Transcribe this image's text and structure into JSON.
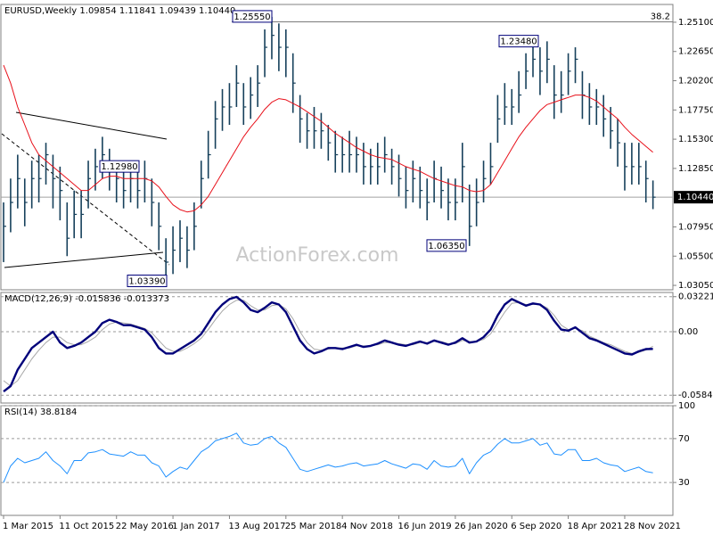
{
  "chart_data": [
    {
      "type": "ohlc",
      "title": "EURUSD,Weekly  1.09854 1.11841 1.09439 1.10440",
      "watermark": "ActionForex.com",
      "categories": [
        "1 Mar 2015",
        null,
        null,
        null,
        null,
        null,
        null,
        null,
        "11 Oct 2015",
        null,
        null,
        null,
        null,
        null,
        null,
        null,
        "22 May 2016",
        null,
        null,
        null,
        null,
        null,
        null,
        null,
        "1 Jan 2017",
        null,
        null,
        null,
        null,
        null,
        null,
        null,
        "13 Aug 2017",
        null,
        null,
        null,
        null,
        null,
        null,
        null,
        "25 Mar 2018",
        null,
        null,
        null,
        null,
        null,
        null,
        null,
        "4 Nov 2018",
        null,
        null,
        null,
        null,
        null,
        null,
        null,
        "16 Jun 2019",
        null,
        null,
        null,
        null,
        null,
        null,
        null,
        "26 Jan 2020",
        null,
        null,
        null,
        null,
        null,
        null,
        null,
        "6 Sep 2020",
        null,
        null,
        null,
        null,
        null,
        null,
        null,
        "18 Apr 2021",
        null,
        null,
        null,
        null,
        null,
        null,
        null,
        "28 Nov 2021",
        null,
        null,
        null,
        null
      ],
      "color": "#16405b",
      "high": [
        1.1,
        1.12,
        1.14,
        1.12,
        1.135,
        1.14,
        1.15,
        1.14,
        1.13,
        1.1,
        1.11,
        1.11,
        1.135,
        1.145,
        1.155,
        1.145,
        1.135,
        1.13,
        1.135,
        1.13,
        1.135,
        1.12,
        1.1,
        1.07,
        1.08,
        1.085,
        1.08,
        1.1,
        1.135,
        1.16,
        1.185,
        1.195,
        1.2,
        1.215,
        1.2,
        1.205,
        1.215,
        1.245,
        1.2555,
        1.25,
        1.245,
        1.225,
        1.19,
        1.175,
        1.18,
        1.175,
        1.165,
        1.16,
        1.155,
        1.16,
        1.155,
        1.15,
        1.145,
        1.15,
        1.155,
        1.145,
        1.14,
        1.13,
        1.135,
        1.13,
        1.12,
        1.135,
        1.13,
        1.12,
        1.12,
        1.15,
        1.115,
        1.12,
        1.135,
        1.15,
        1.19,
        1.2,
        1.195,
        1.21,
        1.225,
        1.2348,
        1.23,
        1.235,
        1.215,
        1.21,
        1.225,
        1.23,
        1.21,
        1.2,
        1.195,
        1.19,
        1.18,
        1.17,
        1.15,
        1.15,
        1.15,
        1.135,
        1.1184
      ],
      "low": [
        1.05,
        1.075,
        1.095,
        1.08,
        1.095,
        1.1,
        1.115,
        1.095,
        1.085,
        1.055,
        1.07,
        1.07,
        1.095,
        1.11,
        1.12,
        1.11,
        1.1,
        1.095,
        1.1,
        1.095,
        1.1,
        1.08,
        1.06,
        1.0339,
        1.04,
        1.05,
        1.045,
        1.06,
        1.095,
        1.12,
        1.145,
        1.16,
        1.165,
        1.18,
        1.165,
        1.17,
        1.18,
        1.205,
        1.22,
        1.21,
        1.205,
        1.175,
        1.15,
        1.145,
        1.145,
        1.145,
        1.135,
        1.125,
        1.125,
        1.125,
        1.125,
        1.115,
        1.115,
        1.115,
        1.125,
        1.115,
        1.105,
        1.095,
        1.1,
        1.095,
        1.085,
        1.1,
        1.095,
        1.085,
        1.085,
        1.1,
        1.0635,
        1.08,
        1.1,
        1.115,
        1.15,
        1.165,
        1.165,
        1.175,
        1.195,
        1.205,
        1.19,
        1.2,
        1.17,
        1.175,
        1.19,
        1.2,
        1.17,
        1.165,
        1.165,
        1.155,
        1.145,
        1.13,
        1.11,
        1.115,
        1.115,
        1.1,
        1.0944
      ],
      "close": [
        1.08,
        1.1,
        1.12,
        1.1,
        1.12,
        1.12,
        1.14,
        1.12,
        1.11,
        1.07,
        1.09,
        1.09,
        1.12,
        1.13,
        1.14,
        1.13,
        1.12,
        1.11,
        1.12,
        1.11,
        1.12,
        1.1,
        1.08,
        1.05,
        1.06,
        1.07,
        1.06,
        1.08,
        1.12,
        1.14,
        1.17,
        1.18,
        1.18,
        1.2,
        1.18,
        1.19,
        1.2,
        1.23,
        1.24,
        1.23,
        1.23,
        1.2,
        1.17,
        1.16,
        1.16,
        1.16,
        1.15,
        1.14,
        1.14,
        1.14,
        1.14,
        1.13,
        1.13,
        1.13,
        1.14,
        1.13,
        1.12,
        1.11,
        1.12,
        1.11,
        1.1,
        1.12,
        1.11,
        1.1,
        1.1,
        1.13,
        1.08,
        1.1,
        1.12,
        1.13,
        1.17,
        1.18,
        1.18,
        1.19,
        1.21,
        1.22,
        1.21,
        1.22,
        1.19,
        1.19,
        1.21,
        1.22,
        1.19,
        1.18,
        1.18,
        1.17,
        1.16,
        1.15,
        1.13,
        1.13,
        1.13,
        1.12,
        1.1044
      ],
      "ma": {
        "color": "#e8101a",
        "values": [
          1.215,
          1.2,
          1.18,
          1.165,
          1.15,
          1.14,
          1.135,
          1.13,
          1.125,
          1.12,
          1.115,
          1.11,
          1.11,
          1.115,
          1.12,
          1.122,
          1.122,
          1.12,
          1.12,
          1.12,
          1.12,
          1.118,
          1.113,
          1.105,
          1.098,
          1.094,
          1.092,
          1.093,
          1.098,
          1.105,
          1.115,
          1.125,
          1.135,
          1.145,
          1.155,
          1.163,
          1.17,
          1.178,
          1.184,
          1.187,
          1.186,
          1.183,
          1.18,
          1.176,
          1.172,
          1.168,
          1.163,
          1.158,
          1.154,
          1.15,
          1.146,
          1.143,
          1.14,
          1.138,
          1.137,
          1.136,
          1.133,
          1.13,
          1.128,
          1.126,
          1.123,
          1.12,
          1.118,
          1.116,
          1.114,
          1.113,
          1.11,
          1.109,
          1.11,
          1.115,
          1.125,
          1.135,
          1.145,
          1.155,
          1.163,
          1.17,
          1.177,
          1.182,
          1.184,
          1.186,
          1.188,
          1.19,
          1.19,
          1.188,
          1.185,
          1.18,
          1.175,
          1.17,
          1.163,
          1.157,
          1.152,
          1.147,
          1.142
        ]
      },
      "ylim": [
        1.0268,
        1.2659
      ],
      "yticks": [
        {
          "value": 1.251,
          "label": "1.25100"
        },
        {
          "value": 1.2265,
          "label": "1.22650"
        },
        {
          "value": 1.202,
          "label": "1.20200"
        },
        {
          "value": 1.1775,
          "label": "1.17750"
        },
        {
          "value": 1.153,
          "label": "1.15300"
        },
        {
          "value": 1.1285,
          "label": "1.12850"
        },
        {
          "value": 1.0795,
          "label": "1.07950"
        },
        {
          "value": 1.055,
          "label": "1.05500"
        },
        {
          "value": 1.0305,
          "label": "1.03050"
        }
      ],
      "grid": false,
      "last": {
        "value": 1.1044,
        "label": "1.10440"
      },
      "fib": {
        "value": 1.2513,
        "label": "38.2"
      },
      "annotations": [
        {
          "value": 1.2555,
          "label": "1.25550"
        },
        {
          "value": 1.2348,
          "label": "1.23480"
        },
        {
          "value": 1.1298,
          "label": "1.12980"
        },
        {
          "value": 1.0339,
          "label": "1.03390"
        },
        {
          "value": 1.0635,
          "label": "1.06350"
        }
      ]
    },
    {
      "type": "macd",
      "title": "MACD(12,26,9) -0.015836 -0.013373",
      "ylim": [
        -0.0656,
        0.0361
      ],
      "yticks": [
        0.032215,
        {
          "value": 0,
          "label": "0.00"
        },
        -0.058413
      ],
      "grid": true,
      "series": [
        {
          "color": "#00007a",
          "values": [
            -0.055,
            -0.05,
            -0.035,
            -0.025,
            -0.015,
            -0.01,
            -0.005,
            0.0,
            -0.01,
            -0.015,
            -0.013,
            -0.01,
            -0.005,
            0.0,
            0.008,
            0.011,
            0.009,
            0.006,
            0.006,
            0.004,
            0.002,
            -0.005,
            -0.015,
            -0.02,
            -0.02,
            -0.016,
            -0.012,
            -0.008,
            -0.002,
            0.008,
            0.018,
            0.025,
            0.03,
            0.032,
            0.027,
            0.02,
            0.018,
            0.022,
            0.027,
            0.025,
            0.018,
            0.005,
            -0.008,
            -0.016,
            -0.02,
            -0.018,
            -0.015,
            -0.015,
            -0.016,
            -0.014,
            -0.012,
            -0.014,
            -0.013,
            -0.011,
            -0.008,
            -0.01,
            -0.012,
            -0.013,
            -0.011,
            -0.009,
            -0.011,
            -0.008,
            -0.01,
            -0.012,
            -0.01,
            -0.006,
            -0.01,
            -0.009,
            -0.005,
            0.002,
            0.015,
            0.025,
            0.03,
            0.027,
            0.024,
            0.026,
            0.025,
            0.02,
            0.01,
            0.002,
            0.001,
            0.004,
            -0.001,
            -0.006,
            -0.008,
            -0.011,
            -0.014,
            -0.017,
            -0.02,
            -0.021,
            -0.018,
            -0.016,
            -0.015836
          ]
        },
        {
          "color": "#a8a8a8",
          "values": [
            -0.045,
            -0.05,
            -0.045,
            -0.035,
            -0.025,
            -0.017,
            -0.01,
            -0.005,
            -0.005,
            -0.01,
            -0.012,
            -0.012,
            -0.009,
            -0.005,
            0.002,
            0.007,
            0.009,
            0.008,
            0.007,
            0.005,
            0.003,
            -0.001,
            -0.008,
            -0.015,
            -0.018,
            -0.018,
            -0.015,
            -0.011,
            -0.006,
            0.002,
            0.011,
            0.019,
            0.025,
            0.029,
            0.029,
            0.024,
            0.02,
            0.02,
            0.024,
            0.025,
            0.021,
            0.012,
            0.0,
            -0.01,
            -0.016,
            -0.017,
            -0.016,
            -0.015,
            -0.015,
            -0.015,
            -0.013,
            -0.013,
            -0.013,
            -0.012,
            -0.01,
            -0.01,
            -0.011,
            -0.012,
            -0.012,
            -0.01,
            -0.01,
            -0.009,
            -0.009,
            -0.011,
            -0.011,
            -0.008,
            -0.009,
            -0.009,
            -0.007,
            -0.002,
            0.008,
            0.018,
            0.026,
            0.027,
            0.025,
            0.025,
            0.025,
            0.022,
            0.015,
            0.006,
            0.002,
            0.003,
            0.001,
            -0.004,
            -0.007,
            -0.01,
            -0.012,
            -0.015,
            -0.018,
            -0.02,
            -0.019,
            -0.017,
            -0.013373
          ]
        }
      ]
    },
    {
      "type": "line",
      "title": "RSI(14) 38.8184",
      "ylim": [
        0,
        100
      ],
      "yticks": [
        100,
        70,
        30
      ],
      "grid": true,
      "color": "#1e90ff",
      "values": [
        30,
        45,
        52,
        48,
        50,
        52,
        58,
        50,
        45,
        38,
        50,
        50,
        57,
        58,
        60,
        56,
        55,
        54,
        58,
        55,
        55,
        48,
        45,
        35,
        40,
        44,
        42,
        50,
        58,
        62,
        68,
        70,
        72,
        75,
        66,
        64,
        65,
        70,
        72,
        66,
        62,
        52,
        42,
        40,
        42,
        44,
        46,
        44,
        45,
        47,
        48,
        45,
        46,
        47,
        50,
        47,
        45,
        43,
        47,
        46,
        42,
        50,
        45,
        44,
        45,
        52,
        38,
        48,
        55,
        58,
        65,
        70,
        66,
        66,
        68,
        70,
        64,
        66,
        56,
        55,
        60,
        60,
        50,
        50,
        52,
        48,
        46,
        45,
        40,
        42,
        44,
        40,
        38.8184
      ]
    }
  ]
}
